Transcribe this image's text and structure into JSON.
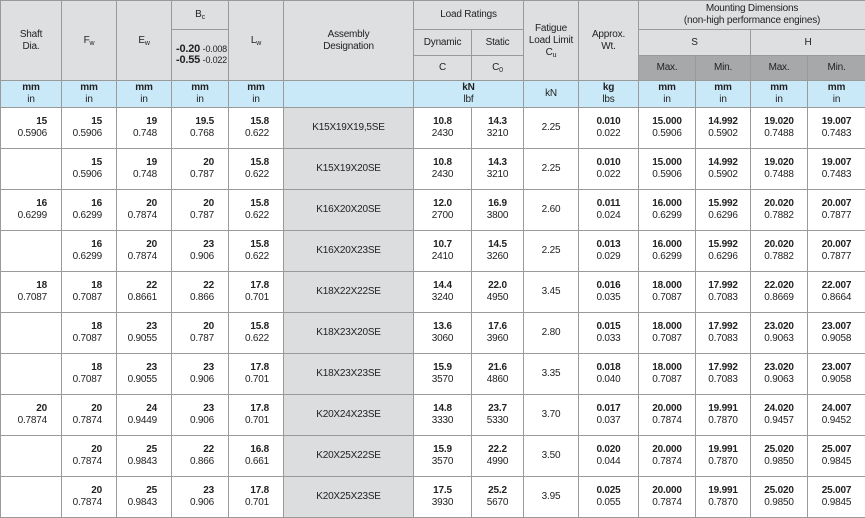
{
  "header": {
    "shaft_dia": [
      "Shaft",
      "Dia."
    ],
    "fw": {
      "main": "F",
      "sub": "w"
    },
    "ew": {
      "main": "E",
      "sub": "w"
    },
    "bc": {
      "main": "B",
      "sub": "c"
    },
    "bc_tolerance": {
      "upper_mm": "-0.20",
      "upper_in": "-0.008",
      "lower_mm": "-0.55",
      "lower_in": "-0.022"
    },
    "lw": {
      "main": "L",
      "sub": "w"
    },
    "assembly": [
      "Assembly",
      "Designation"
    ],
    "load_ratings": "Load Ratings",
    "dynamic": "Dynamic",
    "static": "Static",
    "c": "C",
    "c0": {
      "main": "C",
      "sub": "0"
    },
    "fatigue": [
      "Fatigue",
      "Load Limit"
    ],
    "cu": {
      "main": "C",
      "sub": "u"
    },
    "approx_wt": [
      "Approx.",
      "Wt."
    ],
    "mounting": [
      "Mounting Dimensions",
      "(non-high performance engines)"
    ],
    "s": "S",
    "h": "H",
    "max": "Max.",
    "min": "Min."
  },
  "units": {
    "mm": "mm",
    "in": "in",
    "kn": "kN",
    "lbf": "lbf",
    "kg": "kg",
    "lbs": "lbs"
  },
  "colors": {
    "header_bg": "#dedfe0",
    "units_bg": "#c9e9f9",
    "dark_header_bg": "#a7a8a9",
    "designation_bg": "#dcdddf"
  },
  "rows": [
    {
      "shaft": [
        "15",
        "0.5906"
      ],
      "fw": [
        "15",
        "0.5906"
      ],
      "ew": [
        "19",
        "0.748"
      ],
      "bc": [
        "19.5",
        "0.768"
      ],
      "lw": [
        "15.8",
        "0.622"
      ],
      "designation": "K15X19X19,5SE",
      "c": [
        "10.8",
        "2430"
      ],
      "c0": [
        "14.3",
        "3210"
      ],
      "cu": "2.25",
      "wt": [
        "0.010",
        "0.022"
      ],
      "s_max": [
        "15.000",
        "0.5906"
      ],
      "s_min": [
        "14.992",
        "0.5902"
      ],
      "h_max": [
        "19.020",
        "0.7488"
      ],
      "h_min": [
        "19.007",
        "0.7483"
      ]
    },
    {
      "shaft": null,
      "fw": [
        "15",
        "0.5906"
      ],
      "ew": [
        "19",
        "0.748"
      ],
      "bc": [
        "20",
        "0.787"
      ],
      "lw": [
        "15.8",
        "0.622"
      ],
      "designation": "K15X19X20SE",
      "c": [
        "10.8",
        "2430"
      ],
      "c0": [
        "14.3",
        "3210"
      ],
      "cu": "2.25",
      "wt": [
        "0.010",
        "0.022"
      ],
      "s_max": [
        "15.000",
        "0.5906"
      ],
      "s_min": [
        "14.992",
        "0.5902"
      ],
      "h_max": [
        "19.020",
        "0.7488"
      ],
      "h_min": [
        "19.007",
        "0.7483"
      ]
    },
    {
      "shaft": [
        "16",
        "0.6299"
      ],
      "fw": [
        "16",
        "0.6299"
      ],
      "ew": [
        "20",
        "0.7874"
      ],
      "bc": [
        "20",
        "0.787"
      ],
      "lw": [
        "15.8",
        "0.622"
      ],
      "designation": "K16X20X20SE",
      "c": [
        "12.0",
        "2700"
      ],
      "c0": [
        "16.9",
        "3800"
      ],
      "cu": "2.60",
      "wt": [
        "0.011",
        "0.024"
      ],
      "s_max": [
        "16.000",
        "0.6299"
      ],
      "s_min": [
        "15.992",
        "0.6296"
      ],
      "h_max": [
        "20.020",
        "0.7882"
      ],
      "h_min": [
        "20.007",
        "0.7877"
      ]
    },
    {
      "shaft": null,
      "fw": [
        "16",
        "0.6299"
      ],
      "ew": [
        "20",
        "0.7874"
      ],
      "bc": [
        "23",
        "0.906"
      ],
      "lw": [
        "15.8",
        "0.622"
      ],
      "designation": "K16X20X23SE",
      "c": [
        "10.7",
        "2410"
      ],
      "c0": [
        "14.5",
        "3260"
      ],
      "cu": "2.25",
      "wt": [
        "0.013",
        "0.029"
      ],
      "s_max": [
        "16.000",
        "0.6299"
      ],
      "s_min": [
        "15.992",
        "0.6296"
      ],
      "h_max": [
        "20.020",
        "0.7882"
      ],
      "h_min": [
        "20.007",
        "0.7877"
      ]
    },
    {
      "shaft": [
        "18",
        "0.7087"
      ],
      "fw": [
        "18",
        "0.7087"
      ],
      "ew": [
        "22",
        "0.8661"
      ],
      "bc": [
        "22",
        "0.866"
      ],
      "lw": [
        "17.8",
        "0.701"
      ],
      "designation": "K18X22X22SE",
      "c": [
        "14.4",
        "3240"
      ],
      "c0": [
        "22.0",
        "4950"
      ],
      "cu": "3.45",
      "wt": [
        "0.016",
        "0.035"
      ],
      "s_max": [
        "18.000",
        "0.7087"
      ],
      "s_min": [
        "17.992",
        "0.7083"
      ],
      "h_max": [
        "22.020",
        "0.8669"
      ],
      "h_min": [
        "22.007",
        "0.8664"
      ]
    },
    {
      "shaft": null,
      "fw": [
        "18",
        "0.7087"
      ],
      "ew": [
        "23",
        "0.9055"
      ],
      "bc": [
        "20",
        "0.787"
      ],
      "lw": [
        "15.8",
        "0.622"
      ],
      "designation": "K18X23X20SE",
      "c": [
        "13.6",
        "3060"
      ],
      "c0": [
        "17.6",
        "3960"
      ],
      "cu": "2.80",
      "wt": [
        "0.015",
        "0.033"
      ],
      "s_max": [
        "18.000",
        "0.7087"
      ],
      "s_min": [
        "17.992",
        "0.7083"
      ],
      "h_max": [
        "23.020",
        "0.9063"
      ],
      "h_min": [
        "23.007",
        "0.9058"
      ]
    },
    {
      "shaft": null,
      "fw": [
        "18",
        "0.7087"
      ],
      "ew": [
        "23",
        "0.9055"
      ],
      "bc": [
        "23",
        "0.906"
      ],
      "lw": [
        "17.8",
        "0.701"
      ],
      "designation": "K18X23X23SE",
      "c": [
        "15.9",
        "3570"
      ],
      "c0": [
        "21.6",
        "4860"
      ],
      "cu": "3.35",
      "wt": [
        "0.018",
        "0.040"
      ],
      "s_max": [
        "18.000",
        "0.7087"
      ],
      "s_min": [
        "17.992",
        "0.7083"
      ],
      "h_max": [
        "23.020",
        "0.9063"
      ],
      "h_min": [
        "23.007",
        "0.9058"
      ]
    },
    {
      "shaft": [
        "20",
        "0.7874"
      ],
      "fw": [
        "20",
        "0.7874"
      ],
      "ew": [
        "24",
        "0.9449"
      ],
      "bc": [
        "23",
        "0.906"
      ],
      "lw": [
        "17.8",
        "0.701"
      ],
      "designation": "K20X24X23SE",
      "c": [
        "14.8",
        "3330"
      ],
      "c0": [
        "23.7",
        "5330"
      ],
      "cu": "3.70",
      "wt": [
        "0.017",
        "0.037"
      ],
      "s_max": [
        "20.000",
        "0.7874"
      ],
      "s_min": [
        "19.991",
        "0.7870"
      ],
      "h_max": [
        "24.020",
        "0.9457"
      ],
      "h_min": [
        "24.007",
        "0.9452"
      ]
    },
    {
      "shaft": null,
      "fw": [
        "20",
        "0.7874"
      ],
      "ew": [
        "25",
        "0.9843"
      ],
      "bc": [
        "22",
        "0.866"
      ],
      "lw": [
        "16.8",
        "0.661"
      ],
      "designation": "K20X25X22SE",
      "c": [
        "15.9",
        "3570"
      ],
      "c0": [
        "22.2",
        "4990"
      ],
      "cu": "3.50",
      "wt": [
        "0.020",
        "0.044"
      ],
      "s_max": [
        "20.000",
        "0.7874"
      ],
      "s_min": [
        "19.991",
        "0.7870"
      ],
      "h_max": [
        "25.020",
        "0.9850"
      ],
      "h_min": [
        "25.007",
        "0.9845"
      ]
    },
    {
      "shaft": null,
      "fw": [
        "20",
        "0.7874"
      ],
      "ew": [
        "25",
        "0.9843"
      ],
      "bc": [
        "23",
        "0.906"
      ],
      "lw": [
        "17.8",
        "0.701"
      ],
      "designation": "K20X25X23SE",
      "c": [
        "17.5",
        "3930"
      ],
      "c0": [
        "25.2",
        "5670"
      ],
      "cu": "3.95",
      "wt": [
        "0.025",
        "0.055"
      ],
      "s_max": [
        "20.000",
        "0.7874"
      ],
      "s_min": [
        "19.991",
        "0.7870"
      ],
      "h_max": [
        "25.020",
        "0.9850"
      ],
      "h_min": [
        "25.007",
        "0.9845"
      ]
    }
  ]
}
